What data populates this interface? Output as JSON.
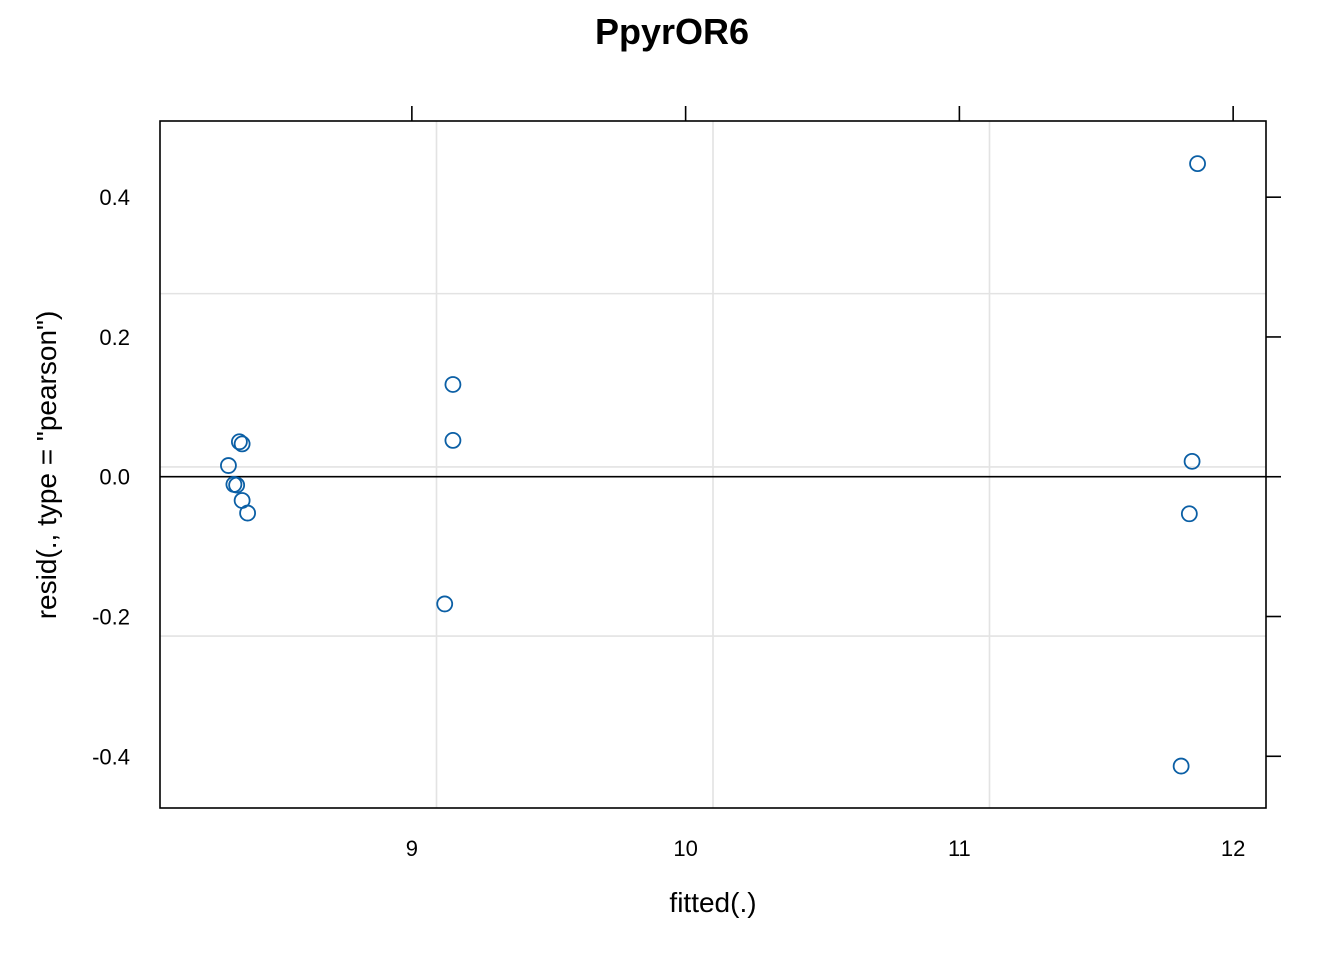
{
  "chart_data": {
    "type": "scatter",
    "title": "PpyrOR6",
    "xlabel": "fitted(.)",
    "ylabel": "resid(., type = \"pearson\")",
    "xlim": [
      8.08,
      12.12
    ],
    "ylim": [
      -0.474,
      0.509
    ],
    "x_ticks": [
      9,
      10,
      11,
      12
    ],
    "x_tick_labels": [
      "9",
      "10",
      "11",
      "12"
    ],
    "y_ticks": [
      -0.4,
      -0.2,
      0.0,
      0.2,
      0.4
    ],
    "y_tick_labels": [
      "-0.4",
      "-0.2",
      "0.0",
      "0.2",
      "0.4"
    ],
    "x_grid": [
      9.09,
      10.1,
      11.11
    ],
    "y_grid": [
      -0.228,
      0.014,
      0.262
    ],
    "reference_line_y": 0.0,
    "marker_color": "#0b5fa5",
    "points": [
      {
        "x": 8.33,
        "y": 0.016
      },
      {
        "x": 8.35,
        "y": -0.011
      },
      {
        "x": 8.36,
        "y": -0.012
      },
      {
        "x": 8.37,
        "y": 0.05
      },
      {
        "x": 8.38,
        "y": 0.047
      },
      {
        "x": 8.38,
        "y": -0.034
      },
      {
        "x": 8.4,
        "y": -0.052
      },
      {
        "x": 9.12,
        "y": -0.182
      },
      {
        "x": 9.15,
        "y": 0.132
      },
      {
        "x": 9.15,
        "y": 0.052
      },
      {
        "x": 11.81,
        "y": -0.414
      },
      {
        "x": 11.84,
        "y": -0.053
      },
      {
        "x": 11.85,
        "y": 0.022
      },
      {
        "x": 11.87,
        "y": 0.448
      }
    ]
  }
}
